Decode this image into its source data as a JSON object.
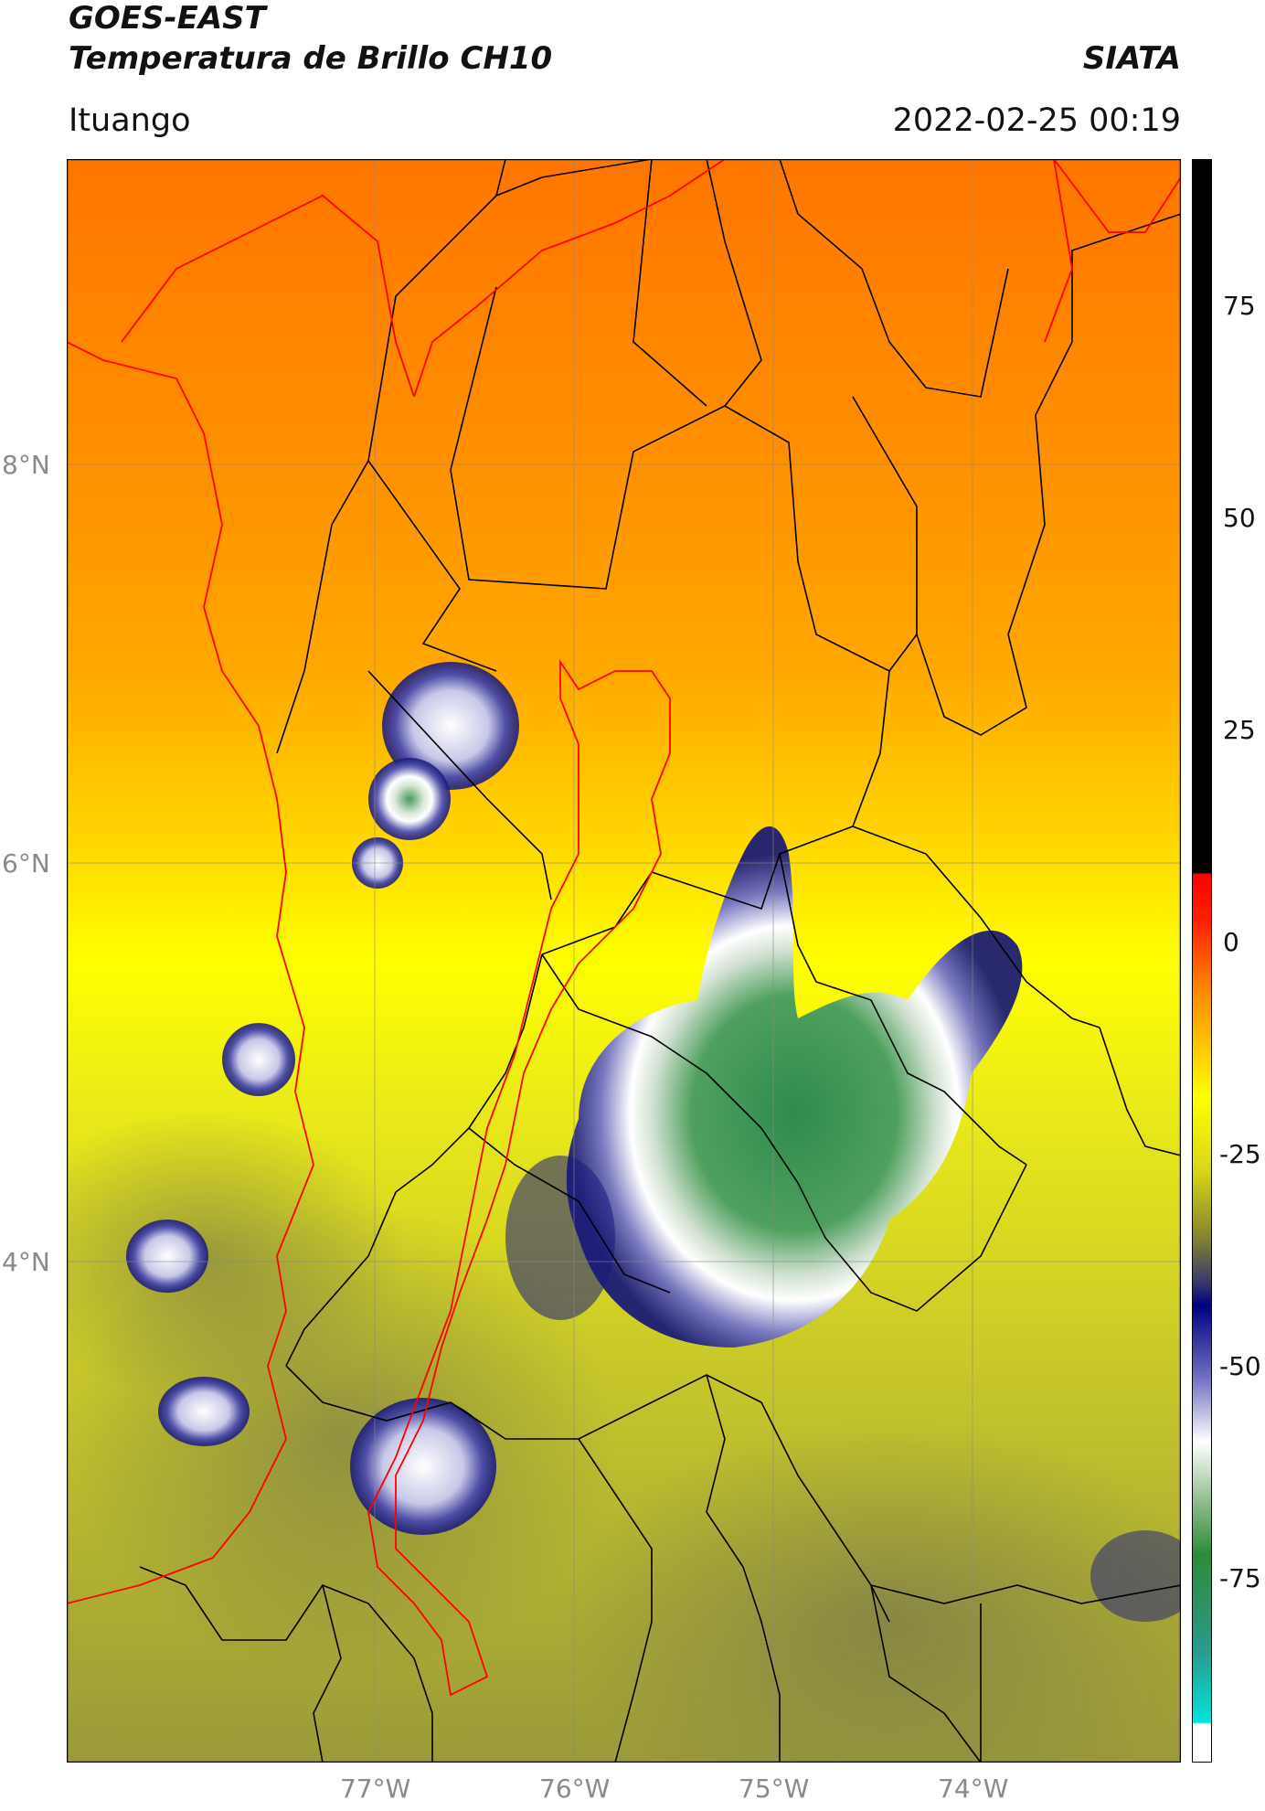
{
  "header": {
    "satellite": "GOES-EAST",
    "product": "Temperatura de Brillo CH10",
    "agency": "SIATA",
    "location": "Ituango",
    "datetime": "2022-02-25 00:19"
  },
  "map": {
    "lon_labels": [
      "77°W",
      "76°W",
      "75°W",
      "74°W"
    ],
    "lat_labels": [
      "8°N",
      "6°N",
      "4°N"
    ],
    "lon_range": [
      -78.55,
      -73.0
    ],
    "lat_range": [
      2.5,
      10.5
    ]
  },
  "colorbar": {
    "ticks": [
      "75",
      "50",
      "25",
      "0",
      "-25",
      "-50",
      "-75"
    ],
    "range": [
      -95,
      90
    ],
    "colors": {
      "black_above": "#000000",
      "red": "#ff0000",
      "orange": "#ff8c00",
      "yellow": "#ffff00",
      "olive": "#8a8a2a",
      "navy": "#000080",
      "white": "#ffffff",
      "green": "#2e8b57",
      "cyan": "#00e5d0"
    }
  }
}
